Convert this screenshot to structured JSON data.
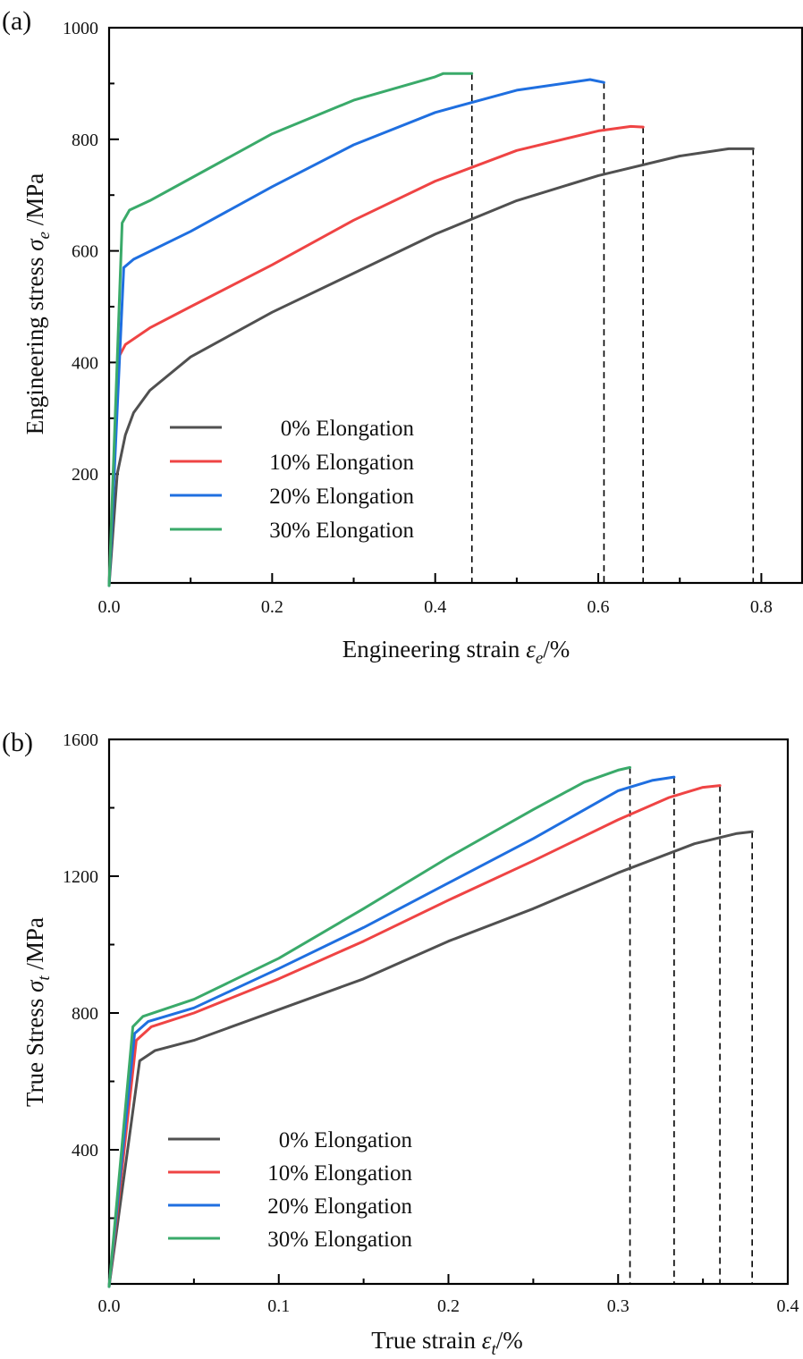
{
  "chart_data": [
    {
      "type": "line",
      "panel_label": "(a)",
      "title": "",
      "xlabel": "Engineering strain",
      "xlabel_symbol": "ε",
      "xlabel_sub": "e",
      "xlabel_unit": "/%",
      "ylabel": "Engineering stress",
      "ylabel_symbol": "σ",
      "ylabel_sub": "e",
      "ylabel_unit": "/MPa",
      "xlim": [
        0,
        0.85
      ],
      "ylim": [
        0,
        1000
      ],
      "xticks": [
        0.0,
        0.2,
        0.4,
        0.6,
        0.8
      ],
      "xtick_labels": [
        "0.0",
        "0.2",
        "0.4",
        "0.6",
        "0.8"
      ],
      "xminor": [
        0.1,
        0.3,
        0.5,
        0.7
      ],
      "yticks": [
        200,
        400,
        600,
        800,
        1000
      ],
      "ytick_labels": [
        "200",
        "400",
        "600",
        "800",
        "1000"
      ],
      "yminor": [
        100,
        300,
        500,
        700,
        900
      ],
      "grid": false,
      "legend_position": "lower-center-left",
      "fracture_markers": [
        0.445,
        0.607,
        0.655,
        0.79
      ],
      "series": [
        {
          "name": "  0% Elongation",
          "color": "#505050",
          "x": [
            0,
            0.01,
            0.02,
            0.03,
            0.05,
            0.1,
            0.2,
            0.3,
            0.4,
            0.5,
            0.6,
            0.7,
            0.76,
            0.79
          ],
          "y": [
            0,
            200,
            270,
            310,
            350,
            410,
            490,
            560,
            630,
            690,
            735,
            770,
            783,
            783
          ]
        },
        {
          "name": "10% Elongation",
          "color": "#ef4444",
          "x": [
            0,
            0.012,
            0.02,
            0.05,
            0.1,
            0.2,
            0.3,
            0.4,
            0.5,
            0.6,
            0.64,
            0.655
          ],
          "y": [
            0,
            410,
            432,
            462,
            500,
            575,
            655,
            725,
            780,
            815,
            823,
            822
          ]
        },
        {
          "name": "20% Elongation",
          "color": "#1f6fe0",
          "x": [
            0,
            0.018,
            0.03,
            0.1,
            0.2,
            0.3,
            0.4,
            0.5,
            0.59,
            0.607
          ],
          "y": [
            0,
            570,
            585,
            635,
            715,
            790,
            848,
            888,
            907,
            902
          ]
        },
        {
          "name": "30% Elongation",
          "color": "#3aaa6a",
          "x": [
            0,
            0.016,
            0.025,
            0.05,
            0.1,
            0.2,
            0.3,
            0.4,
            0.41,
            0.445
          ],
          "y": [
            0,
            650,
            673,
            690,
            730,
            810,
            870,
            912,
            918,
            918
          ]
        }
      ]
    },
    {
      "type": "line",
      "panel_label": "(b)",
      "title": "",
      "xlabel": "True strain",
      "xlabel_symbol": "ε",
      "xlabel_sub": "t",
      "xlabel_unit": "/%",
      "ylabel": "True Stress",
      "ylabel_symbol": "σ",
      "ylabel_sub": "t",
      "ylabel_unit": "/MPa",
      "xlim": [
        0,
        0.4
      ],
      "ylim": [
        0,
        1600
      ],
      "xticks": [
        0.0,
        0.1,
        0.2,
        0.3,
        0.4
      ],
      "xtick_labels": [
        "0.0",
        "0.1",
        "0.2",
        "0.3",
        "0.4"
      ],
      "xminor": [
        0.05,
        0.15,
        0.25,
        0.35
      ],
      "yticks": [
        400,
        800,
        1200,
        1600
      ],
      "ytick_labels": [
        "400",
        "800",
        "1200",
        "1600"
      ],
      "yminor": [
        200,
        600,
        1000,
        1400
      ],
      "grid": false,
      "legend_position": "lower-center-left",
      "fracture_markers": [
        0.307,
        0.333,
        0.36,
        0.379
      ],
      "series": [
        {
          "name": "  0% Elongation",
          "color": "#505050",
          "x": [
            0,
            0.018,
            0.027,
            0.05,
            0.1,
            0.15,
            0.2,
            0.25,
            0.3,
            0.345,
            0.37,
            0.379
          ],
          "y": [
            0,
            660,
            690,
            720,
            810,
            900,
            1010,
            1105,
            1210,
            1295,
            1325,
            1330
          ]
        },
        {
          "name": "10% Elongation",
          "color": "#ef4444",
          "x": [
            0,
            0.016,
            0.025,
            0.05,
            0.1,
            0.15,
            0.2,
            0.25,
            0.3,
            0.33,
            0.35,
            0.36
          ],
          "y": [
            0,
            720,
            760,
            800,
            900,
            1010,
            1130,
            1245,
            1365,
            1430,
            1460,
            1465
          ]
        },
        {
          "name": "20% Elongation",
          "color": "#1f6fe0",
          "x": [
            0,
            0.015,
            0.023,
            0.05,
            0.1,
            0.15,
            0.2,
            0.25,
            0.3,
            0.32,
            0.333
          ],
          "y": [
            0,
            740,
            775,
            815,
            930,
            1050,
            1180,
            1310,
            1450,
            1480,
            1490
          ]
        },
        {
          "name": "30% Elongation",
          "color": "#3aaa6a",
          "x": [
            0,
            0.014,
            0.02,
            0.05,
            0.1,
            0.15,
            0.2,
            0.25,
            0.28,
            0.3,
            0.307
          ],
          "y": [
            0,
            760,
            790,
            840,
            960,
            1105,
            1255,
            1395,
            1475,
            1510,
            1518
          ]
        }
      ]
    }
  ]
}
